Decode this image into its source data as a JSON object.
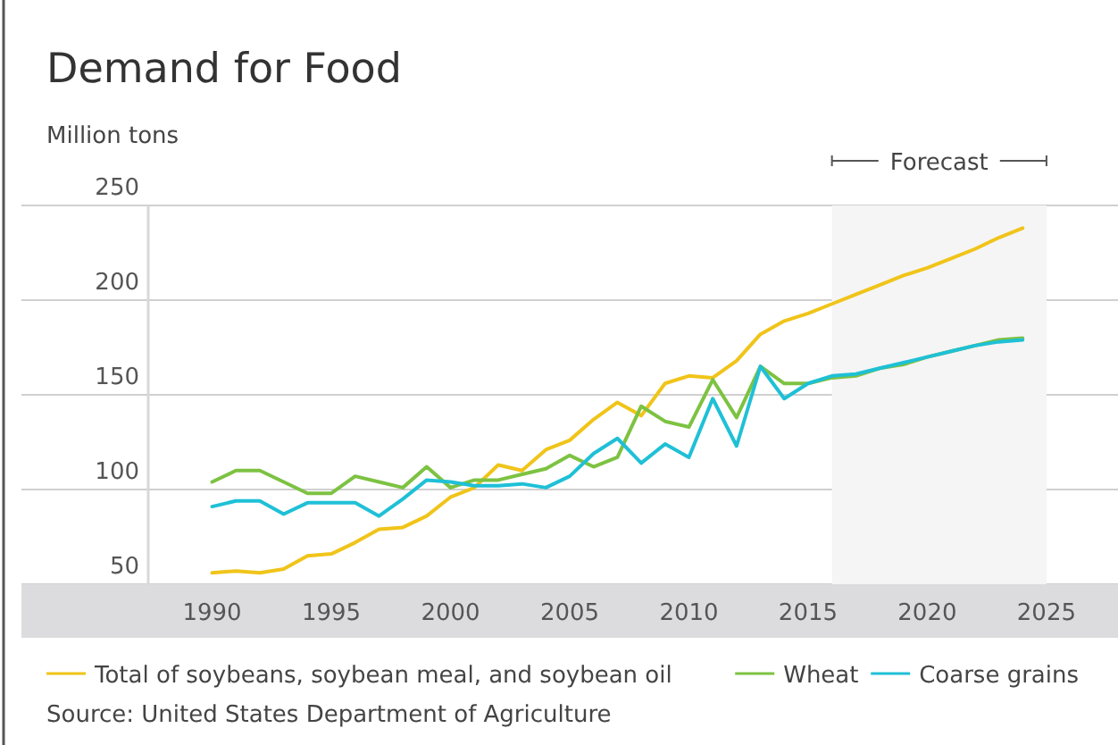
{
  "chart_data": {
    "type": "line",
    "title": "Demand for Food",
    "ylabel": "Million tons",
    "x": [
      1990,
      1991,
      1992,
      1993,
      1994,
      1995,
      1996,
      1997,
      1998,
      1999,
      2000,
      2001,
      2002,
      2003,
      2004,
      2005,
      2006,
      2007,
      2008,
      2009,
      2010,
      2011,
      2012,
      2013,
      2014,
      2015,
      2016,
      2017,
      2018,
      2019,
      2020,
      2021,
      2022,
      2023,
      2024
    ],
    "series": [
      {
        "name": "Total of soybeans, soybean meal, and soybean oil",
        "color": "#f0c419",
        "values": [
          56,
          57,
          56,
          58,
          65,
          66,
          72,
          79,
          80,
          86,
          96,
          101,
          113,
          110,
          121,
          126,
          137,
          146,
          139,
          156,
          160,
          159,
          168,
          182,
          189,
          193,
          198,
          203,
          208,
          213,
          217,
          222,
          227,
          233,
          238
        ]
      },
      {
        "name": "Wheat",
        "color": "#7dc242",
        "values": [
          104,
          110,
          110,
          104,
          98,
          98,
          107,
          104,
          101,
          112,
          101,
          105,
          105,
          108,
          111,
          118,
          112,
          117,
          144,
          136,
          133,
          158,
          138,
          165,
          156,
          156,
          159,
          160,
          164,
          166,
          170,
          173,
          176,
          179,
          180
        ]
      },
      {
        "name": "Coarse grains",
        "color": "#1fc0d6",
        "values": [
          91,
          94,
          94,
          87,
          93,
          93,
          93,
          86,
          95,
          105,
          104,
          102,
          102,
          103,
          101,
          107,
          119,
          127,
          114,
          124,
          117,
          148,
          123,
          165,
          148,
          156,
          160,
          161,
          164,
          167,
          170,
          173,
          176,
          178,
          179
        ]
      }
    ],
    "xlim": [
      1982,
      2028
    ],
    "ylim": [
      50,
      250
    ],
    "xticks": [
      1990,
      1995,
      2000,
      2005,
      2010,
      2015,
      2020,
      2025
    ],
    "yticks": [
      50,
      100,
      150,
      200,
      250
    ],
    "grid": "y",
    "legend": "bottom",
    "bands": [
      {
        "axis": "x",
        "from": 2016,
        "to": 2025,
        "label": "Forecast"
      }
    ],
    "annotations": [
      "Source: United States Department of Agriculture"
    ]
  }
}
